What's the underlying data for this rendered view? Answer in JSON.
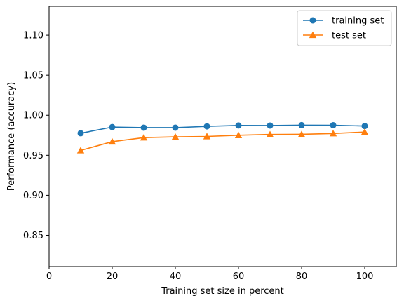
{
  "chart_data": {
    "type": "line",
    "x": [
      10,
      20,
      30,
      40,
      50,
      60,
      70,
      80,
      90,
      100
    ],
    "series": [
      {
        "name": "training set",
        "color": "#1f77b4",
        "marker": "circle",
        "values": [
          0.9775,
          0.9852,
          0.9845,
          0.9845,
          0.9861,
          0.9872,
          0.9871,
          0.9876,
          0.9875,
          0.9865
        ]
      },
      {
        "name": "test set",
        "color": "#ff7f0e",
        "marker": "triangle-up",
        "values": [
          0.956,
          0.967,
          0.972,
          0.973,
          0.9735,
          0.975,
          0.976,
          0.9762,
          0.9772,
          0.979
        ]
      }
    ],
    "xlabel": "Training set size in percent",
    "ylabel": "Performance (accuracy)",
    "xlim": [
      0,
      110
    ],
    "ylim": [
      0.811,
      1.136
    ],
    "xticks": [
      0,
      20,
      40,
      60,
      80,
      100
    ],
    "xtick_labels": [
      "0",
      "20",
      "40",
      "60",
      "80",
      "100"
    ],
    "yticks": [
      0.85,
      0.9,
      0.95,
      1.0,
      1.05,
      1.1
    ],
    "ytick_labels": [
      "0.85",
      "0.90",
      "0.95",
      "1.00",
      "1.05",
      "1.10"
    ],
    "grid": false,
    "legend": "top-right"
  }
}
